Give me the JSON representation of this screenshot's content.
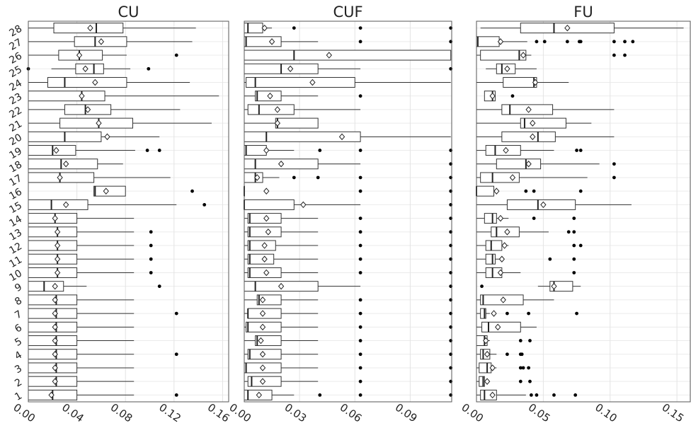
{
  "chart_data": [
    {
      "type": "boxplot",
      "title": "CU",
      "categories": [
        "1",
        "2",
        "3",
        "4",
        "5",
        "6",
        "7",
        "8",
        "9",
        "10",
        "11",
        "12",
        "13",
        "14",
        "15",
        "16",
        "17",
        "18",
        "19",
        "20",
        "21",
        "22",
        "23",
        "24",
        "25",
        "26",
        "27",
        "28"
      ],
      "xlim": [
        0,
        0.165
      ],
      "xticks": [
        {
          "value": 0,
          "label": "0.00"
        },
        0.04,
        0.08,
        0.12,
        0.16
      ],
      "grid": true,
      "boxes": [
        {
          "lo": 0,
          "q1": 0,
          "median": 0.02,
          "q3": 0.04,
          "hi": 0.087,
          "mean": 0.019,
          "outliers": [
            0.122
          ]
        },
        {
          "lo": 0,
          "q1": 0,
          "median": 0.023,
          "q3": 0.04,
          "hi": 0.087,
          "mean": 0.022,
          "outliers": []
        },
        {
          "lo": 0,
          "q1": 0,
          "median": 0.023,
          "q3": 0.04,
          "hi": 0.087,
          "mean": 0.022,
          "outliers": []
        },
        {
          "lo": 0,
          "q1": 0,
          "median": 0.023,
          "q3": 0.04,
          "hi": 0.087,
          "mean": 0.022,
          "outliers": [
            0.122
          ]
        },
        {
          "lo": 0,
          "q1": 0,
          "median": 0.023,
          "q3": 0.04,
          "hi": 0.087,
          "mean": 0.022,
          "outliers": []
        },
        {
          "lo": 0,
          "q1": 0,
          "median": 0.023,
          "q3": 0.04,
          "hi": 0.087,
          "mean": 0.022,
          "outliers": []
        },
        {
          "lo": 0,
          "q1": 0,
          "median": 0.023,
          "q3": 0.04,
          "hi": 0.087,
          "mean": 0.022,
          "outliers": [
            0.122
          ]
        },
        {
          "lo": 0,
          "q1": 0,
          "median": 0.023,
          "q3": 0.04,
          "hi": 0.087,
          "mean": 0.022,
          "outliers": []
        },
        {
          "lo": 0,
          "q1": 0,
          "median": 0.013,
          "q3": 0.029,
          "hi": 0.048,
          "mean": 0.022,
          "outliers": [
            0.108
          ]
        },
        {
          "lo": 0,
          "q1": 0,
          "median": 0.024,
          "q3": 0.04,
          "hi": 0.087,
          "mean": 0.024,
          "outliers": [
            0.101
          ]
        },
        {
          "lo": 0,
          "q1": 0,
          "median": 0.024,
          "q3": 0.04,
          "hi": 0.087,
          "mean": 0.024,
          "outliers": [
            0.101
          ]
        },
        {
          "lo": 0,
          "q1": 0,
          "median": 0.024,
          "q3": 0.04,
          "hi": 0.087,
          "mean": 0.024,
          "outliers": [
            0.101
          ]
        },
        {
          "lo": 0,
          "q1": 0,
          "median": 0.024,
          "q3": 0.04,
          "hi": 0.087,
          "mean": 0.024,
          "outliers": [
            0.101
          ]
        },
        {
          "lo": 0,
          "q1": 0,
          "median": 0.022,
          "q3": 0.04,
          "hi": 0.087,
          "mean": 0.022,
          "outliers": []
        },
        {
          "lo": 0,
          "q1": 0,
          "median": 0.019,
          "q3": 0.049,
          "hi": 0.122,
          "mean": 0.031,
          "outliers": [
            0.145
          ]
        },
        {
          "lo": 0.054,
          "q1": 0.054,
          "median": 0.055,
          "q3": 0.08,
          "hi": 0.08,
          "mean": 0.064,
          "outliers": [
            0.135
          ]
        },
        {
          "lo": 0,
          "q1": 0,
          "median": 0.026,
          "q3": 0.054,
          "hi": 0.117,
          "mean": 0.026,
          "outliers": []
        },
        {
          "lo": 0,
          "q1": 0,
          "median": 0.027,
          "q3": 0.057,
          "hi": 0.078,
          "mean": 0.031,
          "outliers": []
        },
        {
          "lo": 0,
          "q1": 0,
          "median": 0.02,
          "q3": 0.039,
          "hi": 0.088,
          "mean": 0.023,
          "outliers": [
            0.098,
            0.108
          ]
        },
        {
          "lo": 0,
          "q1": 0,
          "median": 0.03,
          "q3": 0.06,
          "hi": 0.108,
          "mean": 0.065,
          "outliers": []
        },
        {
          "lo": 0,
          "q1": 0.026,
          "median": 0.058,
          "q3": 0.086,
          "hi": 0.151,
          "mean": 0.058,
          "outliers": []
        },
        {
          "lo": 0,
          "q1": 0.03,
          "median": 0.047,
          "q3": 0.068,
          "hi": 0.125,
          "mean": 0.049,
          "outliers": []
        },
        {
          "lo": 0,
          "q1": 0,
          "median": 0.044,
          "q3": 0.063,
          "hi": 0.157,
          "mean": 0.044,
          "outliers": []
        },
        {
          "lo": 0,
          "q1": 0.016,
          "median": 0.03,
          "q3": 0.081,
          "hi": 0.133,
          "mean": 0.055,
          "outliers": []
        },
        {
          "lo": 0.019,
          "q1": 0.039,
          "median": 0.054,
          "q3": 0.062,
          "hi": 0.084,
          "mean": 0.047,
          "outliers": [
            0,
            0.099
          ]
        },
        {
          "lo": 0,
          "q1": 0.025,
          "median": 0.042,
          "q3": 0.061,
          "hi": 0.081,
          "mean": 0.042,
          "outliers": [
            0.122
          ]
        },
        {
          "lo": 0,
          "q1": 0.038,
          "median": 0.055,
          "q3": 0.081,
          "hi": 0.135,
          "mean": 0.06,
          "outliers": []
        },
        {
          "lo": 0,
          "q1": 0.021,
          "median": 0.056,
          "q3": 0.078,
          "hi": 0.138,
          "mean": 0.051,
          "outliers": []
        }
      ]
    },
    {
      "type": "boxplot",
      "title": "CUF",
      "xlim": [
        0,
        0.1125
      ],
      "xticks": [
        {
          "value": 0,
          "label": "0.00"
        },
        0.03,
        0.06,
        0.09
      ],
      "grid": true,
      "boxes": [
        {
          "lo": 0,
          "q1": 0,
          "median": 0.002,
          "q3": 0.015,
          "hi": 0.027,
          "mean": 0.008,
          "outliers": [
            0.041,
            0.063,
            0.112
          ]
        },
        {
          "lo": 0,
          "q1": 0.002,
          "median": 0.004,
          "q3": 0.02,
          "hi": 0.04,
          "mean": 0.01,
          "outliers": [
            0.063,
            0.112
          ]
        },
        {
          "lo": 0,
          "q1": 0,
          "median": 0.001,
          "q3": 0.02,
          "hi": 0.04,
          "mean": 0.01,
          "outliers": [
            0.063,
            0.112
          ]
        },
        {
          "lo": 0,
          "q1": 0.002,
          "median": 0.003,
          "q3": 0.02,
          "hi": 0.04,
          "mean": 0.01,
          "outliers": [
            0.063,
            0.112
          ]
        },
        {
          "lo": 0,
          "q1": 0.006,
          "median": 0.007,
          "q3": 0.02,
          "hi": 0.04,
          "mean": 0.009,
          "outliers": [
            0.063,
            0.112
          ]
        },
        {
          "lo": 0,
          "q1": 0.001,
          "median": 0.002,
          "q3": 0.02,
          "hi": 0.04,
          "mean": 0.01,
          "outliers": [
            0.063,
            0.112
          ]
        },
        {
          "lo": 0,
          "q1": 0.002,
          "median": 0.002,
          "q3": 0.02,
          "hi": 0.04,
          "mean": 0.01,
          "outliers": [
            0.063,
            0.112
          ]
        },
        {
          "lo": 0,
          "q1": 0.007,
          "median": 0.008,
          "q3": 0.02,
          "hi": 0.04,
          "mean": 0.01,
          "outliers": [
            0.063,
            0.112
          ]
        },
        {
          "lo": 0,
          "q1": 0,
          "median": 0.006,
          "q3": 0.04,
          "hi": 0.063,
          "mean": 0.02,
          "outliers": [
            0.112
          ]
        },
        {
          "lo": 0,
          "q1": 0.002,
          "median": 0.003,
          "q3": 0.02,
          "hi": 0.04,
          "mean": 0.012,
          "outliers": [
            0.063,
            0.112
          ]
        },
        {
          "lo": 0,
          "q1": 0.002,
          "median": 0.003,
          "q3": 0.016,
          "hi": 0.04,
          "mean": 0.011,
          "outliers": [
            0.063,
            0.112
          ]
        },
        {
          "lo": 0,
          "q1": 0.002,
          "median": 0.003,
          "q3": 0.017,
          "hi": 0.04,
          "mean": 0.011,
          "outliers": [
            0.063,
            0.112
          ]
        },
        {
          "lo": 0,
          "q1": 0.002,
          "median": 0.003,
          "q3": 0.02,
          "hi": 0.04,
          "mean": 0.013,
          "outliers": [
            0.063,
            0.112
          ]
        },
        {
          "lo": 0,
          "q1": 0.002,
          "median": 0.003,
          "q3": 0.02,
          "hi": 0.04,
          "mean": 0.012,
          "outliers": [
            0.063,
            0.112
          ]
        },
        {
          "lo": 0,
          "q1": 0,
          "median": 0,
          "q3": 0.027,
          "hi": 0.063,
          "mean": 0.032,
          "outliers": [
            0.112
          ]
        },
        {
          "lo": 0,
          "q1": 0,
          "median": 0,
          "q3": 0,
          "hi": 0,
          "mean": 0.012,
          "outliers": [
            0.063,
            0.112
          ]
        },
        {
          "lo": 0,
          "q1": 0,
          "median": 0.006,
          "q3": 0.01,
          "hi": 0.019,
          "mean": 0.007,
          "outliers": [
            0.027,
            0.04,
            0.063,
            0.112
          ]
        },
        {
          "lo": 0,
          "q1": 0,
          "median": 0.006,
          "q3": 0.04,
          "hi": 0.063,
          "mean": 0.02,
          "outliers": [
            0.112
          ]
        },
        {
          "lo": 0,
          "q1": 0,
          "median": 0.001,
          "q3": 0.012,
          "hi": 0.027,
          "mean": 0.012,
          "outliers": [
            0.041,
            0.063,
            0.112
          ]
        },
        {
          "lo": 0,
          "q1": 0,
          "median": 0.012,
          "q3": 0.063,
          "hi": 0.112,
          "mean": 0.053,
          "outliers": []
        },
        {
          "lo": 0,
          "q1": 0.017,
          "median": 0.018,
          "q3": 0.04,
          "hi": 0.04,
          "mean": 0.018,
          "outliers": []
        },
        {
          "lo": 0,
          "q1": 0.002,
          "median": 0.008,
          "q3": 0.027,
          "hi": 0.063,
          "mean": 0.018,
          "outliers": []
        },
        {
          "lo": 0,
          "q1": 0.006,
          "median": 0.007,
          "q3": 0.02,
          "hi": 0.04,
          "mean": 0.014,
          "outliers": [
            0.063
          ]
        },
        {
          "lo": 0,
          "q1": 0.001,
          "median": 0.006,
          "q3": 0.06,
          "hi": 0.112,
          "mean": 0.037,
          "outliers": []
        },
        {
          "lo": 0,
          "q1": 0,
          "median": 0.02,
          "q3": 0.04,
          "hi": 0.063,
          "mean": 0.025,
          "outliers": [
            0.112
          ]
        },
        {
          "lo": 0,
          "q1": 0,
          "median": 0.027,
          "q3": 0.112,
          "hi": 0.112,
          "mean": 0.046,
          "outliers": []
        },
        {
          "lo": 0,
          "q1": 0,
          "median": 0.001,
          "q3": 0.02,
          "hi": 0.04,
          "mean": 0.015,
          "outliers": [
            0.063,
            0.112
          ]
        },
        {
          "lo": 0,
          "q1": 0,
          "median": 0.002,
          "q3": 0.01,
          "hi": 0.015,
          "mean": 0.011,
          "outliers": [
            0.027,
            0.063,
            0.112
          ]
        }
      ]
    },
    {
      "type": "boxplot",
      "title": "FU",
      "xlim": [
        0,
        0.16
      ],
      "xticks": [
        {
          "value": 0,
          "label": "0.00"
        },
        0.05,
        {
          "value": 0.1,
          "label": "0.10"
        },
        0.15
      ],
      "grid": true,
      "boxes": [
        {
          "lo": 0,
          "q1": 0.003,
          "median": 0.006,
          "q3": 0.015,
          "hi": 0.037,
          "mean": 0.012,
          "outliers": [
            0.041,
            0.045,
            0.058,
            0.074
          ]
        },
        {
          "lo": 0,
          "q1": 0.002,
          "median": 0.005,
          "q3": 0.006,
          "hi": 0.01,
          "mean": 0.008,
          "outliers": [
            0.033,
            0.04
          ]
        },
        {
          "lo": 0,
          "q1": 0.002,
          "median": 0.008,
          "q3": 0.011,
          "hi": 0.015,
          "mean": 0.012,
          "outliers": [
            0.033,
            0.035,
            0.039
          ]
        },
        {
          "lo": 0,
          "q1": 0.003,
          "median": 0.005,
          "q3": 0.01,
          "hi": 0.015,
          "mean": 0.008,
          "outliers": [
            0.023,
            0.033,
            0.034
          ]
        },
        {
          "lo": 0,
          "q1": 0,
          "median": 0.006,
          "q3": 0.008,
          "hi": 0.01,
          "mean": 0.007,
          "outliers": [
            0.033,
            0.04
          ]
        },
        {
          "lo": 0,
          "q1": 0.004,
          "median": 0.009,
          "q3": 0.033,
          "hi": 0.045,
          "mean": 0.016,
          "outliers": []
        },
        {
          "lo": 0,
          "q1": 0.003,
          "median": 0.006,
          "q3": 0.007,
          "hi": 0.01,
          "mean": 0.013,
          "outliers": [
            0.023,
            0.039,
            0.075
          ]
        },
        {
          "lo": 0,
          "q1": 0.003,
          "median": 0.005,
          "q3": 0.035,
          "hi": 0.058,
          "mean": 0.02,
          "outliers": []
        },
        {
          "lo": 0.046,
          "q1": 0.055,
          "median": 0.058,
          "q3": 0.072,
          "hi": 0.078,
          "mean": 0.058,
          "outliers": [
            0.004
          ]
        },
        {
          "lo": 0,
          "q1": 0.007,
          "median": 0.012,
          "q3": 0.019,
          "hi": 0.033,
          "mean": 0.018,
          "outliers": [
            0.073
          ]
        },
        {
          "lo": 0,
          "q1": 0.007,
          "median": 0.012,
          "q3": 0.014,
          "hi": 0.018,
          "mean": 0.019,
          "outliers": [
            0.055,
            0.073
          ]
        },
        {
          "lo": 0,
          "q1": 0.007,
          "median": 0.011,
          "q3": 0.019,
          "hi": 0.024,
          "mean": 0.021,
          "outliers": [
            0.073,
            0.078
          ]
        },
        {
          "lo": 0,
          "q1": 0.011,
          "median": 0.015,
          "q3": 0.032,
          "hi": 0.054,
          "mean": 0.023,
          "outliers": [
            0.069,
            0.073
          ]
        },
        {
          "lo": 0,
          "q1": 0.006,
          "median": 0.012,
          "q3": 0.015,
          "hi": 0.024,
          "mean": 0.018,
          "outliers": [
            0.043,
            0.073
          ]
        },
        {
          "lo": 0,
          "q1": 0.023,
          "median": 0.046,
          "q3": 0.074,
          "hi": 0.116,
          "mean": 0.05,
          "outliers": []
        },
        {
          "lo": 0,
          "q1": 0,
          "median": 0,
          "q3": 0.013,
          "hi": 0.013,
          "mean": 0.015,
          "outliers": [
            0.037,
            0.043,
            0.078
          ]
        },
        {
          "lo": 0,
          "q1": 0.003,
          "median": 0.012,
          "q3": 0.032,
          "hi": 0.083,
          "mean": 0.027,
          "outliers": [
            0.103
          ]
        },
        {
          "lo": 0,
          "q1": 0.015,
          "median": 0.037,
          "q3": 0.048,
          "hi": 0.092,
          "mean": 0.039,
          "outliers": [
            0.103
          ]
        },
        {
          "lo": 0,
          "q1": 0.007,
          "median": 0.014,
          "q3": 0.033,
          "hi": 0.058,
          "mean": 0.022,
          "outliers": [
            0.075,
            0.078
          ]
        },
        {
          "lo": 0,
          "q1": 0.019,
          "median": 0.046,
          "q3": 0.059,
          "hi": 0.103,
          "mean": 0.042,
          "outliers": []
        },
        {
          "lo": 0,
          "q1": 0.033,
          "median": 0.036,
          "q3": 0.067,
          "hi": 0.086,
          "mean": 0.042,
          "outliers": []
        },
        {
          "lo": 0,
          "q1": 0.019,
          "median": 0.025,
          "q3": 0.057,
          "hi": 0.103,
          "mean": 0.039,
          "outliers": []
        },
        {
          "lo": 0.006,
          "q1": 0.006,
          "median": 0.012,
          "q3": 0.014,
          "hi": 0.014,
          "mean": 0.012,
          "outliers": [
            0.027
          ]
        },
        {
          "lo": 0,
          "q1": 0.02,
          "median": 0.043,
          "q3": 0.045,
          "hi": 0.069,
          "mean": 0.044,
          "outliers": []
        },
        {
          "lo": 0.007,
          "q1": 0.015,
          "median": 0.019,
          "q3": 0.029,
          "hi": 0.045,
          "mean": 0.023,
          "outliers": []
        },
        {
          "lo": 0,
          "q1": 0.003,
          "median": 0.032,
          "q3": 0.037,
          "hi": 0.041,
          "mean": 0.035,
          "outliers": [
            0.103,
            0.111
          ]
        },
        {
          "lo": 0,
          "q1": 0,
          "median": 0.001,
          "q3": 0.017,
          "hi": 0.038,
          "mean": 0.018,
          "outliers": [
            0.045,
            0.051,
            0.068,
            0.077,
            0.078,
            0.103,
            0.111,
            0.117
          ]
        },
        {
          "lo": 0.003,
          "q1": 0.033,
          "median": 0.058,
          "q3": 0.103,
          "hi": 0.155,
          "mean": 0.068,
          "outliers": []
        }
      ]
    }
  ]
}
